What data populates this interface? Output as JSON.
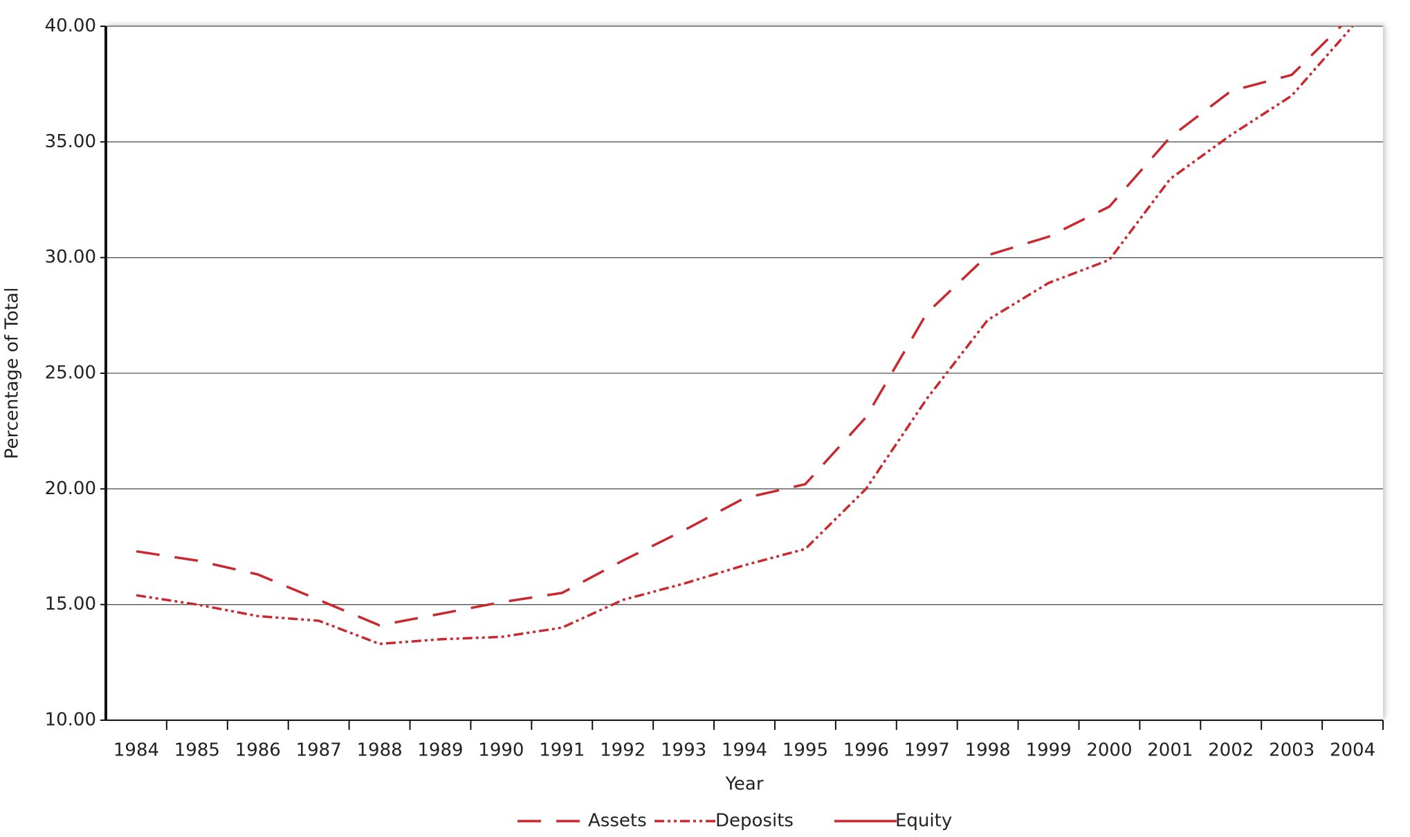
{
  "chart_data": {
    "type": "line",
    "x_label": "Year",
    "y_label": "Percentage of Total",
    "categories": [
      "1984",
      "1985",
      "1986",
      "1987",
      "1988",
      "1989",
      "1990",
      "1991",
      "1992",
      "1993",
      "1994",
      "1995",
      "1996",
      "1997",
      "1998",
      "1999",
      "2000",
      "2001",
      "2002",
      "2003",
      "2004"
    ],
    "series": [
      {
        "name": "Assets",
        "color": "#c8282e",
        "dash": "dashed",
        "values": [
          17.3,
          16.9,
          16.3,
          15.2,
          14.1,
          14.6,
          15.1,
          15.5,
          16.9,
          18.2,
          19.6,
          20.2,
          23.1,
          27.6,
          30.1,
          30.9,
          32.2,
          35.2,
          37.2,
          37.9,
          40.5
        ]
      },
      {
        "name": "Deposits",
        "color": "#c8282e",
        "dash": "dashdotdot",
        "values": [
          15.4,
          15.0,
          14.5,
          14.3,
          13.3,
          13.5,
          13.6,
          14.0,
          15.2,
          15.9,
          16.7,
          17.4,
          20.0,
          23.9,
          27.3,
          28.9,
          29.9,
          33.4,
          35.3,
          37.0,
          40.0
        ]
      },
      {
        "name": "Equity",
        "color": "#c8282e",
        "dash": "solid",
        "values": [
          null,
          null,
          null,
          null,
          null,
          null,
          null,
          null,
          null,
          null,
          null,
          null,
          null,
          null,
          null,
          null,
          null,
          null,
          null,
          null,
          null
        ]
      }
    ],
    "ylim": [
      10,
      40
    ],
    "yticks": [
      {
        "value": 10,
        "label": "10.00"
      },
      {
        "value": 15,
        "label": "15.00"
      },
      {
        "value": 20,
        "label": "20.00"
      },
      {
        "value": 25,
        "label": "25.00"
      },
      {
        "value": 30,
        "label": "30.00"
      },
      {
        "value": 35,
        "label": "35.00"
      },
      {
        "value": 40,
        "label": "40.00"
      }
    ],
    "grid": true,
    "legend": "bottom"
  }
}
